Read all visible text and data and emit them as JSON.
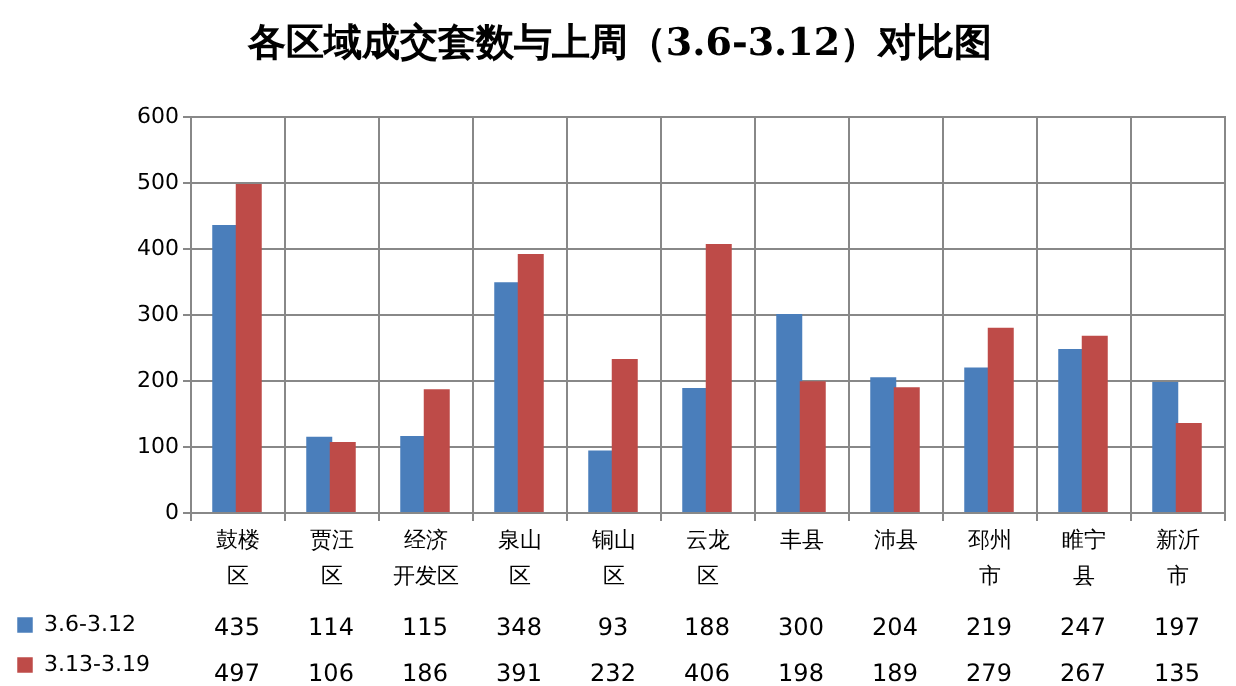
{
  "chart_data": {
    "type": "bar",
    "title": "各区域成交套数与上周（3.6-3.12）对比图",
    "categories": [
      "鼓楼区",
      "贾汪区",
      "经济开发区",
      "泉山区",
      "铜山区",
      "云龙区",
      "丰县",
      "沛县",
      "邳州市",
      "睢宁县",
      "新沂市"
    ],
    "series": [
      {
        "name": "3.6-3.12",
        "color": "#4a7ebb",
        "values": [
          435,
          114,
          115,
          348,
          93,
          188,
          300,
          204,
          219,
          247,
          197
        ]
      },
      {
        "name": "3.13-3.19",
        "color": "#be4b48",
        "values": [
          497,
          106,
          186,
          391,
          232,
          406,
          198,
          189,
          279,
          267,
          135
        ]
      }
    ],
    "ylim": [
      0,
      600
    ],
    "yticks": [
      0,
      100,
      200,
      300,
      400,
      500,
      600
    ],
    "grid": "y",
    "legend": "bottom left",
    "data_labels": true
  }
}
